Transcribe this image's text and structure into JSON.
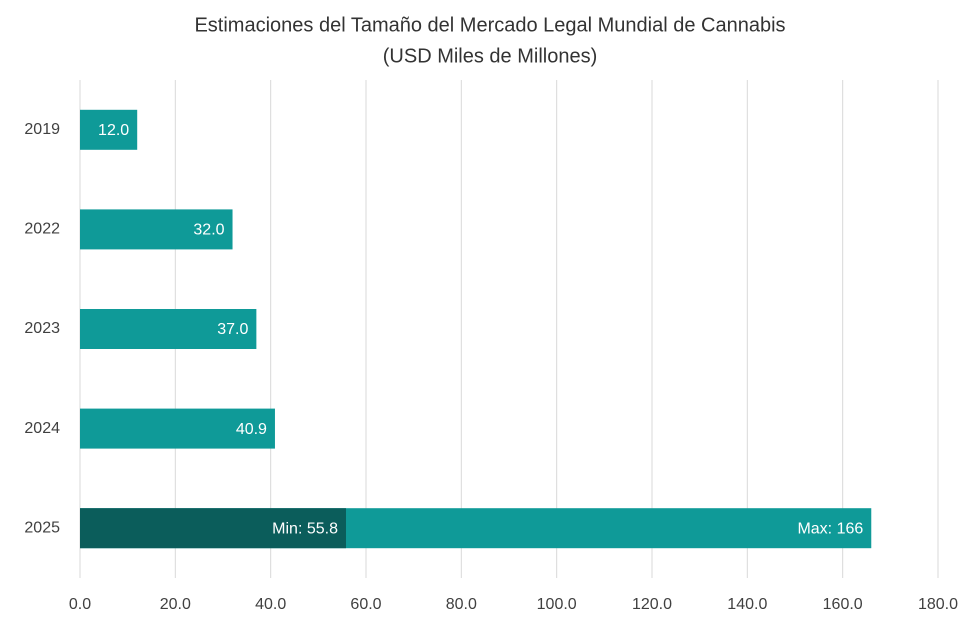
{
  "chart_data": {
    "type": "bar",
    "orientation": "horizontal",
    "title": "Estimaciones del Tamaño del Mercado Legal Mundial de Cannabis",
    "subtitle": "(USD Miles de Millones)",
    "categories": [
      "2019",
      "2022",
      "2023",
      "2024",
      "2025"
    ],
    "series": [
      {
        "color": "#0f9a98",
        "values": [
          12,
          32,
          37,
          40.9,
          166
        ],
        "value_labels": [
          "12.0",
          "32.0",
          "37.0",
          "40.9",
          "Max: 166"
        ]
      },
      {
        "color": "#0b5d5b",
        "values": [
          null,
          null,
          null,
          null,
          55.8
        ],
        "value_labels": [
          null,
          null,
          null,
          null,
          "Min: 55.8"
        ]
      }
    ],
    "xlim": [
      0,
      180
    ],
    "xticks": [
      {
        "value": 0,
        "label": "0.0"
      },
      {
        "value": 20,
        "label": "20.0"
      },
      {
        "value": 40,
        "label": "40.0"
      },
      {
        "value": 60,
        "label": "60.0"
      },
      {
        "value": 80,
        "label": "80.0"
      },
      {
        "value": 100,
        "label": "100.0"
      },
      {
        "value": 120,
        "label": "120.0"
      },
      {
        "value": 140,
        "label": "140.0"
      },
      {
        "value": 160,
        "label": "160.0"
      },
      {
        "value": 180,
        "label": "180.0"
      }
    ],
    "grid": true
  }
}
